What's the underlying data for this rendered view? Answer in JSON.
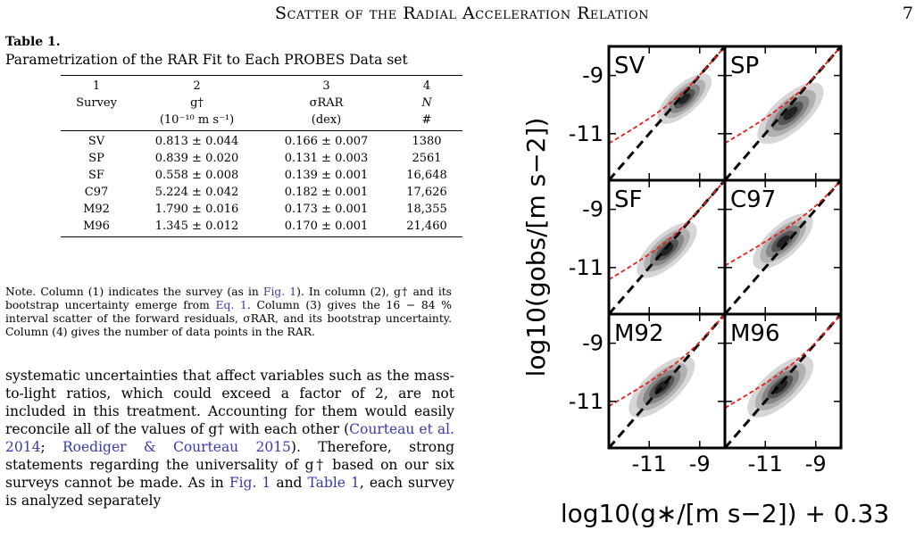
{
  "header": {
    "running_title": "Scatter of the Radial Acceleration Relation",
    "page_number": "7"
  },
  "table": {
    "label": "Table 1.",
    "caption": "Parametrization of the RAR Fit to Each PROBES Data set",
    "column_numbers": [
      "1",
      "2",
      "3",
      "4"
    ],
    "column_names": [
      "Survey",
      "g†",
      "σRAR",
      "N"
    ],
    "column_units": [
      "",
      "(10⁻¹⁰ m s⁻¹)",
      "(dex)",
      "#"
    ],
    "rows": [
      {
        "survey": "SV",
        "gdag": "0.813 ± 0.044",
        "sigma": "0.166 ± 0.007",
        "n": "1380"
      },
      {
        "survey": "SP",
        "gdag": "0.839 ± 0.020",
        "sigma": "0.131 ± 0.003",
        "n": "2561"
      },
      {
        "survey": "SF",
        "gdag": "0.558 ± 0.008",
        "sigma": "0.139 ± 0.001",
        "n": "16,648"
      },
      {
        "survey": "C97",
        "gdag": "5.224 ± 0.042",
        "sigma": "0.182 ± 0.001",
        "n": "17,626"
      },
      {
        "survey": "M92",
        "gdag": "1.790 ± 0.016",
        "sigma": "0.173 ± 0.001",
        "n": "18,355"
      },
      {
        "survey": "M96",
        "gdag": "1.345 ± 0.012",
        "sigma": "0.170 ± 0.001",
        "n": "21,460"
      }
    ]
  },
  "note": {
    "part1": "Note. Column (1) indicates the survey (as in ",
    "link1": "Fig. 1",
    "part2": "). In column (2), g† and its bootstrap uncertainty emerge from ",
    "link2": "Eq. 1",
    "part3": ". Column (3) gives the 16 − 84 % interval scatter of the forward residuals, σRAR, and its bootstrap uncertainty. Column (4) gives the number of data points in the RAR."
  },
  "body": {
    "part1": "systematic uncertainties that affect variables such as the mass-to-light ratios, which could exceed a factor of 2, are not included in this treatment. Accounting for them would easily reconcile all of the values of g† with each other (",
    "cite1": "Courteau et al. 2014",
    "sep1": "; ",
    "cite2": "Roediger & Courteau 2015",
    "part2": "). Therefore, strong statements regarding the universality of g† based on our six surveys cannot be made. As in ",
    "link1": "Fig. 1",
    "part3": " and ",
    "link2": "Table 1",
    "part4": ", each survey is analyzed separately"
  },
  "figure": {
    "y_axis_title": "log10(gobs/[m s−2])",
    "x_axis_title": "log10(g∗/[m s−2]) + 0.33",
    "y_ticks": [
      "-9",
      "-11"
    ],
    "x_ticks": [
      "-11",
      "-9"
    ],
    "panels": [
      "SV",
      "SP",
      "SF",
      "C97",
      "M92",
      "M96"
    ],
    "colors": {
      "fit_line": "#e8201a",
      "one_to_one": "#000000"
    }
  },
  "chart_data": {
    "type": "heatmap",
    "title": "",
    "xlabel": "log10(g∗/[m s−2]) + 0.33",
    "ylabel": "log10(gobs/[m s−2])",
    "xlim": [
      -12.6,
      -8.0
    ],
    "ylim": [
      -12.6,
      -8.0
    ],
    "x_ticks": [
      -11,
      -9
    ],
    "y_ticks": [
      -9,
      -11
    ],
    "grid": false,
    "panels": [
      {
        "name": "SV",
        "gdag": 0.813,
        "density_center": [
          -9.6,
          -9.8
        ],
        "density_spread": 0.45
      },
      {
        "name": "SP",
        "gdag": 0.839,
        "density_center": [
          -10.0,
          -10.3
        ],
        "density_spread": 0.55
      },
      {
        "name": "SF",
        "gdag": 0.558,
        "density_center": [
          -10.3,
          -10.4
        ],
        "density_spread": 0.5
      },
      {
        "name": "C97",
        "gdag": 5.224,
        "density_center": [
          -10.3,
          -10.1
        ],
        "density_spread": 0.5
      },
      {
        "name": "M92",
        "gdag": 1.79,
        "density_center": [
          -10.5,
          -10.5
        ],
        "density_spread": 0.55
      },
      {
        "name": "M96",
        "gdag": 1.345,
        "density_center": [
          -10.4,
          -10.5
        ],
        "density_spread": 0.55
      }
    ],
    "series": [
      {
        "name": "",
        "style": "dashed",
        "color": "#000000",
        "x": [
          -12.6,
          -8.0
        ],
        "y": [
          -12.6,
          -8.0
        ]
      },
      {
        "name": "",
        "style": "dashed",
        "color": "#e8201a",
        "model": "RAR fit with g† per panel"
      }
    ]
  }
}
